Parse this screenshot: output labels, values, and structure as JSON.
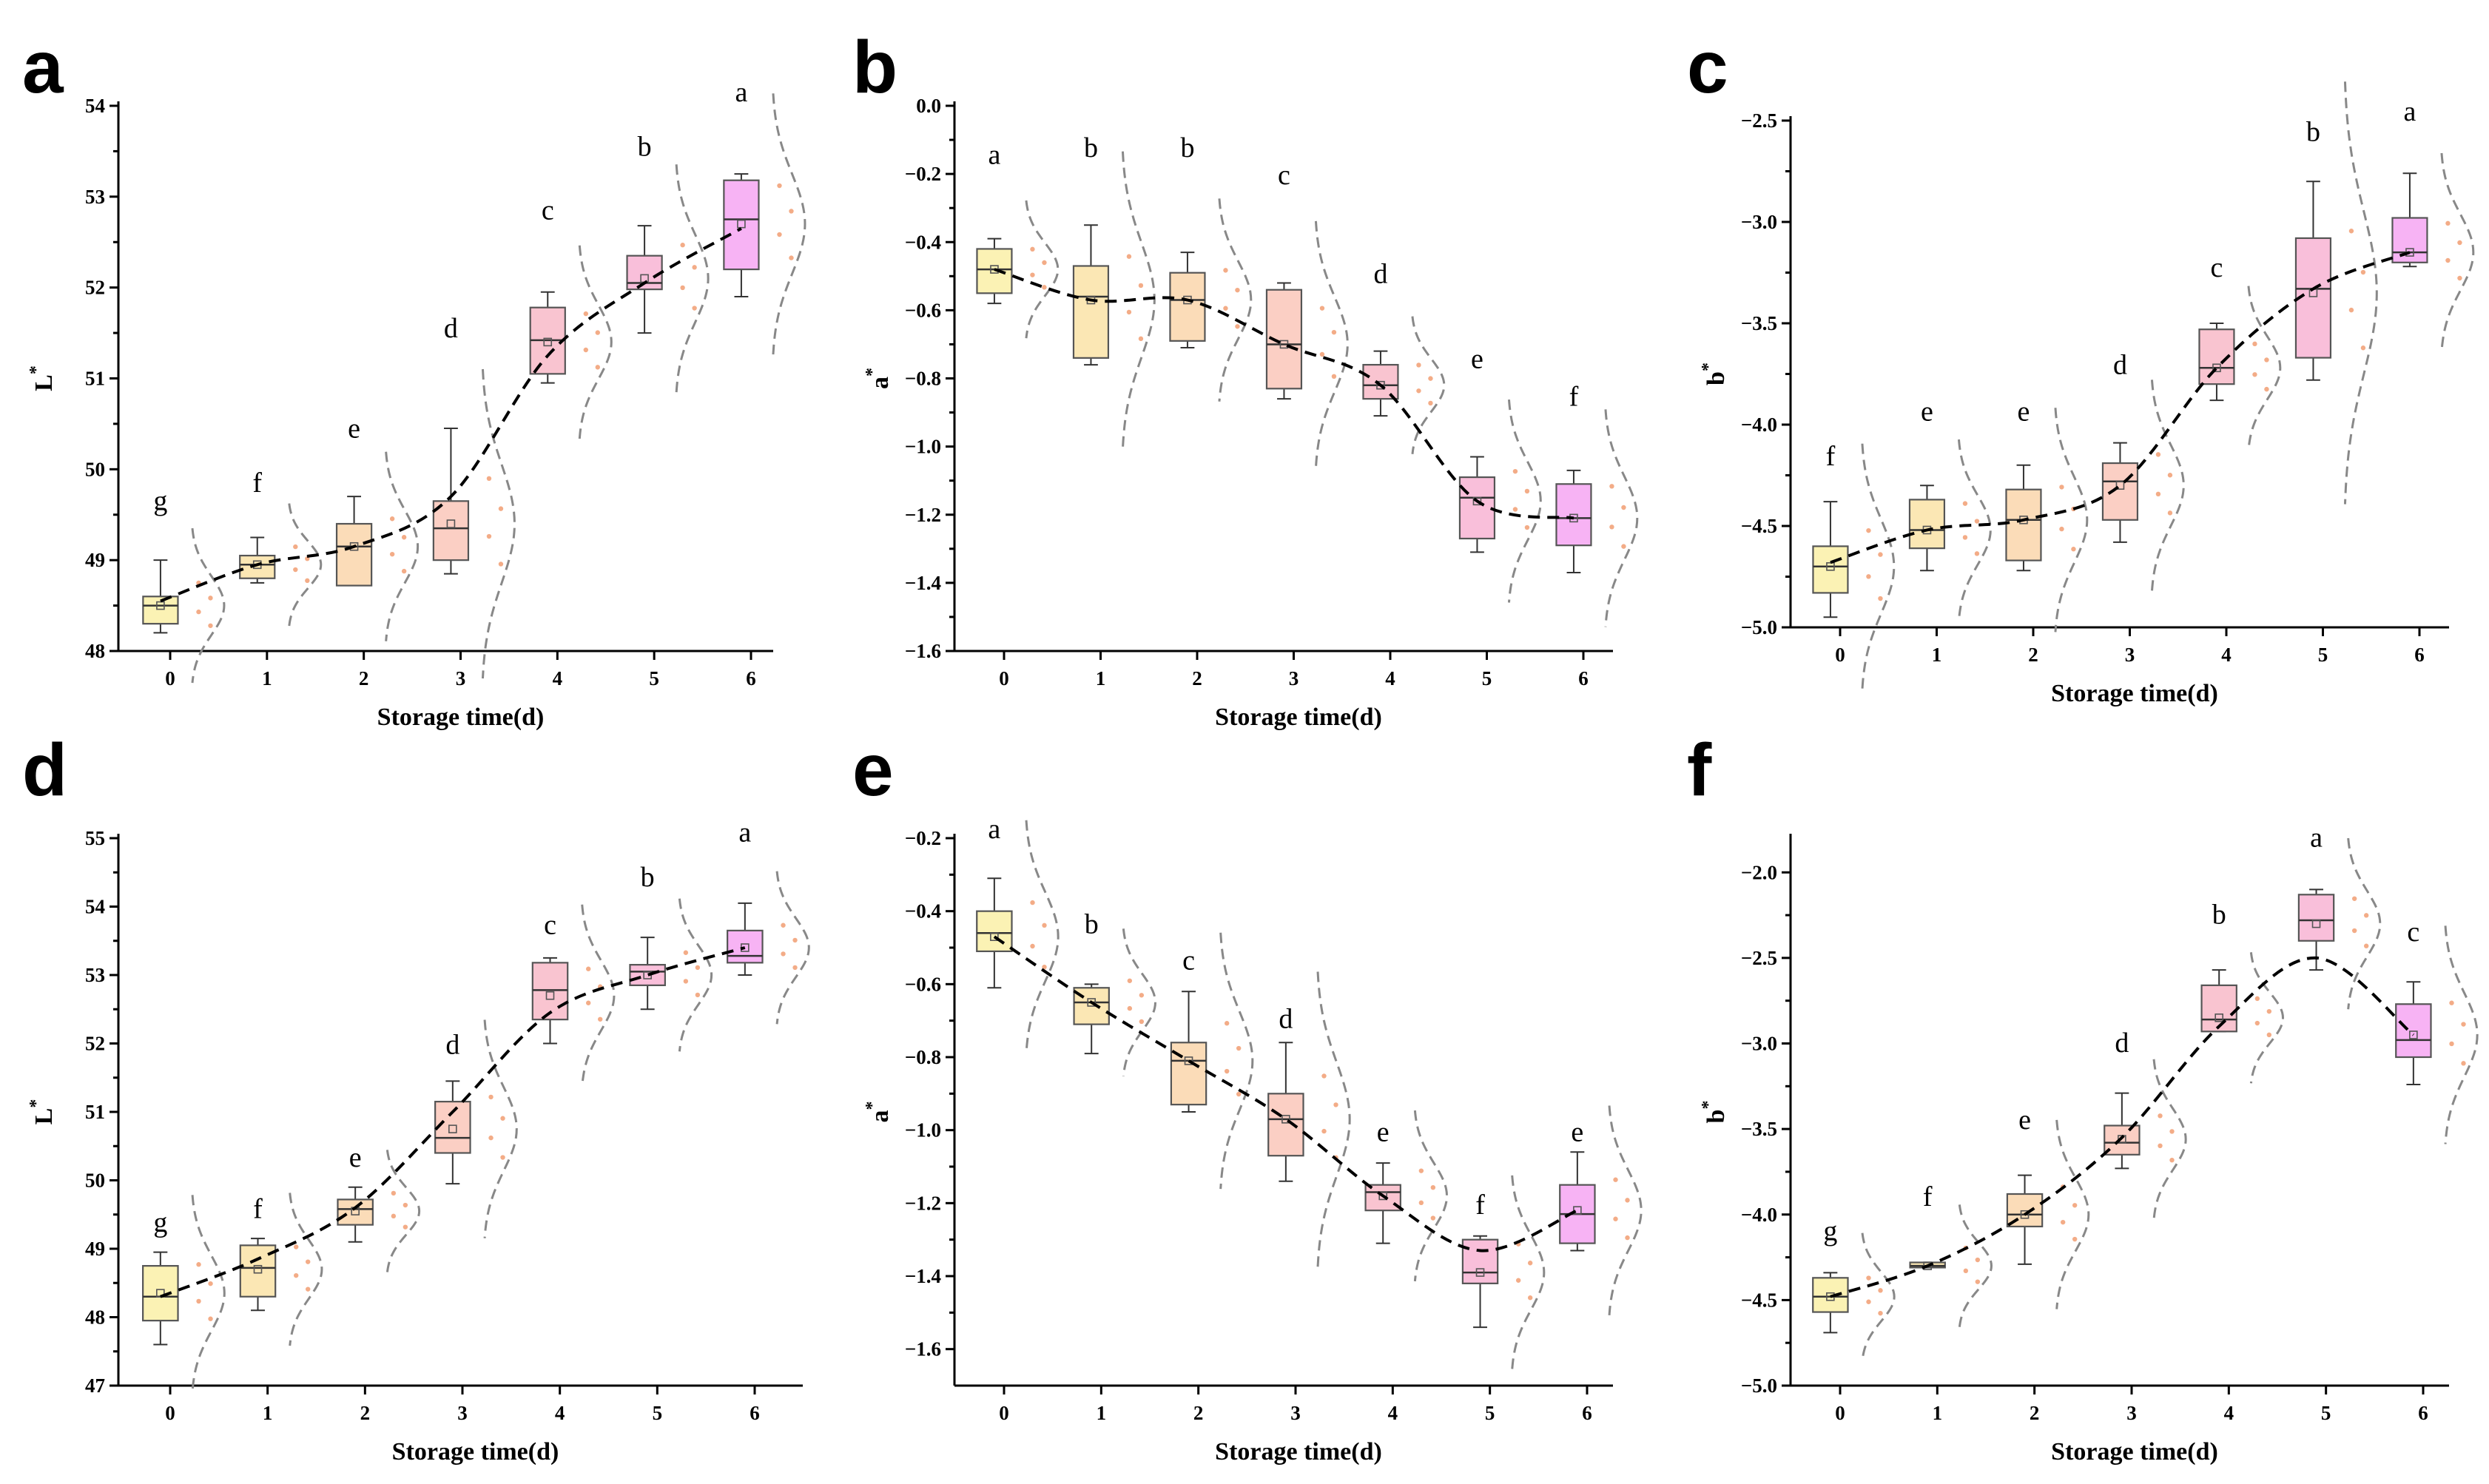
{
  "colors": {
    "day_fill": [
      "#fbf2b4",
      "#fbe7b4",
      "#fbdcb8",
      "#fbcfc4",
      "#f9c4d0",
      "#f9bfda",
      "#f7b3f4"
    ],
    "trend": "#000000",
    "distribution": "#888888",
    "points": "#f2a37a"
  },
  "chart_data": [
    {
      "type": "box",
      "panel": "a",
      "title": "",
      "xlabel": "Storage time(d)",
      "ylabel": "L*",
      "ylabel_main": "L",
      "ylabel_sup": "*",
      "categories": [
        "0",
        "1",
        "2",
        "3",
        "4",
        "5",
        "6"
      ],
      "ylim": [
        48,
        54
      ],
      "yticks": [
        "48",
        "49",
        "50",
        "51",
        "52",
        "53",
        "54"
      ],
      "boxes": [
        {
          "q1": 48.3,
          "median": 48.5,
          "q3": 48.6,
          "whisker_low": 48.2,
          "whisker_high": 49.0,
          "mean": 48.5
        },
        {
          "q1": 48.8,
          "median": 48.95,
          "q3": 49.05,
          "whisker_low": 48.75,
          "whisker_high": 49.25,
          "mean": 48.95
        },
        {
          "q1": 48.72,
          "median": 49.15,
          "q3": 49.4,
          "whisker_low": 48.72,
          "whisker_high": 49.7,
          "mean": 49.15
        },
        {
          "q1": 49.0,
          "median": 49.35,
          "q3": 49.65,
          "whisker_low": 48.85,
          "whisker_high": 50.45,
          "mean": 49.4
        },
        {
          "q1": 51.05,
          "median": 51.42,
          "q3": 51.78,
          "whisker_low": 50.95,
          "whisker_high": 51.95,
          "mean": 51.4
        },
        {
          "q1": 51.98,
          "median": 52.05,
          "q3": 52.35,
          "whisker_low": 51.5,
          "whisker_high": 52.68,
          "mean": 52.1
        },
        {
          "q1": 52.2,
          "median": 52.75,
          "q3": 53.18,
          "whisker_low": 51.9,
          "whisker_high": 53.25,
          "mean": 52.7
        }
      ],
      "trend": [
        48.55,
        48.95,
        49.15,
        49.7,
        51.25,
        52.05,
        52.65
      ],
      "letters": [
        "g",
        "f",
        "e",
        "d",
        "c",
        "b",
        "a"
      ],
      "letter_y": [
        49.55,
        49.75,
        50.35,
        51.45,
        52.75,
        53.45,
        54.05
      ]
    },
    {
      "type": "box",
      "panel": "b",
      "title": "",
      "xlabel": "Storage time(d)",
      "ylabel": "a*",
      "ylabel_main": "a",
      "ylabel_sup": "*",
      "categories": [
        "0",
        "1",
        "2",
        "3",
        "4",
        "5",
        "6"
      ],
      "ylim": [
        -1.6,
        0.0
      ],
      "yticks": [
        "-1.6",
        "-1.4",
        "-1.2",
        "-1.0",
        "-0.8",
        "-0.6",
        "-0.4",
        "-0.2",
        "0.0"
      ],
      "boxes": [
        {
          "q1": -0.55,
          "median": -0.48,
          "q3": -0.42,
          "whisker_low": -0.58,
          "whisker_high": -0.39,
          "mean": -0.48
        },
        {
          "q1": -0.74,
          "median": -0.56,
          "q3": -0.47,
          "whisker_low": -0.76,
          "whisker_high": -0.35,
          "mean": -0.57
        },
        {
          "q1": -0.69,
          "median": -0.57,
          "q3": -0.49,
          "whisker_low": -0.71,
          "whisker_high": -0.43,
          "mean": -0.57
        },
        {
          "q1": -0.83,
          "median": -0.7,
          "q3": -0.54,
          "whisker_low": -0.86,
          "whisker_high": -0.52,
          "mean": -0.7
        },
        {
          "q1": -0.86,
          "median": -0.82,
          "q3": -0.76,
          "whisker_low": -0.91,
          "whisker_high": -0.72,
          "mean": -0.82
        },
        {
          "q1": -1.27,
          "median": -1.15,
          "q3": -1.09,
          "whisker_low": -1.31,
          "whisker_high": -1.03,
          "mean": -1.16
        },
        {
          "q1": -1.29,
          "median": -1.21,
          "q3": -1.11,
          "whisker_low": -1.37,
          "whisker_high": -1.07,
          "mean": -1.21
        }
      ],
      "trend": [
        -0.48,
        -0.57,
        -0.57,
        -0.7,
        -0.82,
        -1.16,
        -1.21
      ],
      "letters": [
        "a",
        "b",
        "b",
        "c",
        "d",
        "e",
        "f"
      ],
      "letter_y": [
        -0.17,
        -0.15,
        -0.15,
        -0.23,
        -0.52,
        -0.77,
        -0.88
      ]
    },
    {
      "type": "box",
      "panel": "c",
      "title": "",
      "xlabel": "Storage time(d)",
      "ylabel": "b*",
      "ylabel_main": "b",
      "ylabel_sup": "*",
      "categories": [
        "0",
        "1",
        "2",
        "3",
        "4",
        "5",
        "6"
      ],
      "ylim": [
        -5.0,
        -2.5
      ],
      "yticks": [
        "-5.0",
        "-4.5",
        "-4.0",
        "-3.5",
        "-3.0",
        "-2.5"
      ],
      "boxes": [
        {
          "q1": -4.83,
          "median": -4.7,
          "q3": -4.6,
          "whisker_low": -4.95,
          "whisker_high": -4.38,
          "mean": -4.7
        },
        {
          "q1": -4.61,
          "median": -4.52,
          "q3": -4.37,
          "whisker_low": -4.72,
          "whisker_high": -4.3,
          "mean": -4.52
        },
        {
          "q1": -4.67,
          "median": -4.47,
          "q3": -4.32,
          "whisker_low": -4.72,
          "whisker_high": -4.2,
          "mean": -4.47
        },
        {
          "q1": -4.47,
          "median": -4.28,
          "q3": -4.19,
          "whisker_low": -4.58,
          "whisker_high": -4.09,
          "mean": -4.3
        },
        {
          "q1": -3.8,
          "median": -3.72,
          "q3": -3.53,
          "whisker_low": -3.88,
          "whisker_high": -3.5,
          "mean": -3.72
        },
        {
          "q1": -3.67,
          "median": -3.33,
          "q3": -3.08,
          "whisker_low": -3.78,
          "whisker_high": -2.8,
          "mean": -3.35
        },
        {
          "q1": -3.2,
          "median": -3.15,
          "q3": -2.98,
          "whisker_low": -3.22,
          "whisker_high": -2.76,
          "mean": -3.15
        }
      ],
      "trend": [
        -4.68,
        -4.52,
        -4.47,
        -4.3,
        -3.72,
        -3.33,
        -3.15
      ],
      "letters": [
        "f",
        "e",
        "e",
        "d",
        "c",
        "b",
        "a"
      ],
      "letter_y": [
        -4.2,
        -3.98,
        -3.98,
        -3.75,
        -3.27,
        -2.6,
        -2.5
      ]
    },
    {
      "type": "box",
      "panel": "d",
      "title": "",
      "xlabel": "Storage time(d)",
      "ylabel": "L*",
      "ylabel_main": "L",
      "ylabel_sup": "*",
      "categories": [
        "0",
        "1",
        "2",
        "3",
        "4",
        "5",
        "6"
      ],
      "ylim": [
        47,
        55
      ],
      "yticks": [
        "47",
        "48",
        "49",
        "50",
        "51",
        "52",
        "53",
        "54",
        "55"
      ],
      "boxes": [
        {
          "q1": 47.95,
          "median": 48.3,
          "q3": 48.75,
          "whisker_low": 47.6,
          "whisker_high": 48.95,
          "mean": 48.35
        },
        {
          "q1": 48.3,
          "median": 48.72,
          "q3": 49.05,
          "whisker_low": 48.1,
          "whisker_high": 49.15,
          "mean": 48.7
        },
        {
          "q1": 49.35,
          "median": 49.58,
          "q3": 49.72,
          "whisker_low": 49.1,
          "whisker_high": 49.9,
          "mean": 49.55
        },
        {
          "q1": 50.4,
          "median": 50.62,
          "q3": 51.15,
          "whisker_low": 49.95,
          "whisker_high": 51.45,
          "mean": 50.75
        },
        {
          "q1": 52.35,
          "median": 52.78,
          "q3": 53.18,
          "whisker_low": 52.0,
          "whisker_high": 53.25,
          "mean": 52.7
        },
        {
          "q1": 52.85,
          "median": 53.05,
          "q3": 53.15,
          "whisker_low": 52.5,
          "whisker_high": 53.55,
          "mean": 53.0
        },
        {
          "q1": 53.18,
          "median": 53.28,
          "q3": 53.65,
          "whisker_low": 53.0,
          "whisker_high": 54.05,
          "mean": 53.4
        }
      ],
      "trend": [
        48.3,
        48.85,
        49.6,
        51.0,
        52.45,
        53.0,
        53.4
      ],
      "letters": [
        "g",
        "f",
        "e",
        "d",
        "c",
        "b",
        "a"
      ],
      "letter_y": [
        49.25,
        49.45,
        50.2,
        51.85,
        53.6,
        54.3,
        54.95
      ]
    },
    {
      "type": "box",
      "panel": "e",
      "title": "",
      "xlabel": "Storage time(d)",
      "ylabel": "a*",
      "ylabel_main": "a",
      "ylabel_sup": "*",
      "categories": [
        "0",
        "1",
        "2",
        "3",
        "4",
        "5",
        "6"
      ],
      "ylim": [
        -1.7,
        -0.2
      ],
      "yticks": [
        "-1.6",
        "-1.4",
        "-1.2",
        "-1.0",
        "-0.8",
        "-0.6",
        "-0.4",
        "-0.2"
      ],
      "boxes": [
        {
          "q1": -0.51,
          "median": -0.46,
          "q3": -0.4,
          "whisker_low": -0.61,
          "whisker_high": -0.31,
          "mean": -0.47
        },
        {
          "q1": -0.71,
          "median": -0.65,
          "q3": -0.61,
          "whisker_low": -0.79,
          "whisker_high": -0.6,
          "mean": -0.65
        },
        {
          "q1": -0.93,
          "median": -0.81,
          "q3": -0.76,
          "whisker_low": -0.95,
          "whisker_high": -0.62,
          "mean": -0.81
        },
        {
          "q1": -1.07,
          "median": -0.97,
          "q3": -0.9,
          "whisker_low": -1.14,
          "whisker_high": -0.76,
          "mean": -0.97
        },
        {
          "q1": -1.22,
          "median": -1.17,
          "q3": -1.15,
          "whisker_low": -1.31,
          "whisker_high": -1.09,
          "mean": -1.18
        },
        {
          "q1": -1.42,
          "median": -1.39,
          "q3": -1.3,
          "whisker_low": -1.54,
          "whisker_high": -1.29,
          "mean": -1.39
        },
        {
          "q1": -1.31,
          "median": -1.23,
          "q3": -1.15,
          "whisker_low": -1.33,
          "whisker_high": -1.06,
          "mean": -1.22
        }
      ],
      "trend": [
        -0.47,
        -0.65,
        -0.81,
        -0.97,
        -1.18,
        -1.33,
        -1.22
      ],
      "letters": [
        "a",
        "b",
        "c",
        "d",
        "e",
        "f",
        "e"
      ],
      "letter_y": [
        -0.2,
        -0.46,
        -0.56,
        -0.72,
        -1.03,
        -1.23,
        -1.03
      ]
    },
    {
      "type": "box",
      "panel": "f",
      "title": "",
      "xlabel": "Storage time(d)",
      "ylabel": "b*",
      "ylabel_main": "b",
      "ylabel_sup": "*",
      "categories": [
        "0",
        "1",
        "2",
        "3",
        "4",
        "5",
        "6"
      ],
      "ylim": [
        -5.0,
        -1.8
      ],
      "yticks": [
        "-5.0",
        "-4.5",
        "-4.0",
        "-3.5",
        "-3.0",
        "-2.5",
        "-2.0"
      ],
      "boxes": [
        {
          "q1": -4.57,
          "median": -4.48,
          "q3": -4.37,
          "whisker_low": -4.69,
          "whisker_high": -4.34,
          "mean": -4.48
        },
        {
          "q1": -4.31,
          "median": -4.3,
          "q3": -4.28,
          "whisker_low": -4.31,
          "whisker_high": -4.28,
          "mean": -4.3
        },
        {
          "q1": -4.07,
          "median": -4.0,
          "q3": -3.88,
          "whisker_low": -4.29,
          "whisker_high": -3.77,
          "mean": -4.0
        },
        {
          "q1": -3.65,
          "median": -3.58,
          "q3": -3.48,
          "whisker_low": -3.73,
          "whisker_high": -3.29,
          "mean": -3.56
        },
        {
          "q1": -2.93,
          "median": -2.86,
          "q3": -2.66,
          "whisker_low": -2.93,
          "whisker_high": -2.57,
          "mean": -2.85
        },
        {
          "q1": -2.4,
          "median": -2.28,
          "q3": -2.13,
          "whisker_low": -2.57,
          "whisker_high": -2.1,
          "mean": -2.3
        },
        {
          "q1": -3.08,
          "median": -2.98,
          "q3": -2.77,
          "whisker_low": -3.24,
          "whisker_high": -2.64,
          "mean": -2.95
        }
      ],
      "trend": [
        -4.48,
        -4.3,
        -4.0,
        -3.55,
        -2.9,
        -2.5,
        -2.95
      ],
      "letters": [
        "g",
        "f",
        "e",
        "d",
        "b",
        "a",
        "c"
      ],
      "letter_y": [
        -4.15,
        -3.95,
        -3.5,
        -3.05,
        -2.3,
        -1.85,
        -2.4
      ]
    }
  ]
}
